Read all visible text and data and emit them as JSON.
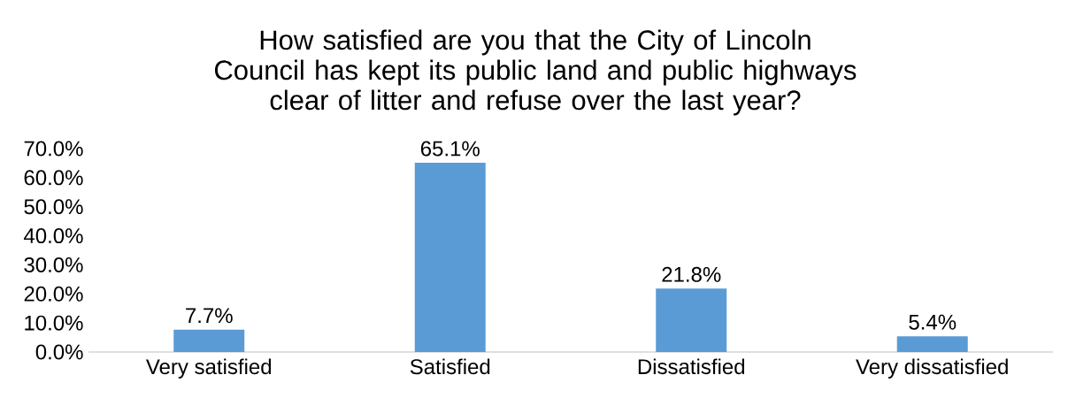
{
  "chart_data": {
    "type": "bar",
    "title": "How satisfied are you that the City of Lincoln Council has kept its public land and public highways clear of litter and refuse over the last year?",
    "categories": [
      "Very satisfied",
      "Satisfied",
      "Dissatisfied",
      "Very dissatisfied"
    ],
    "values": [
      7.7,
      65.1,
      21.8,
      5.4
    ],
    "value_labels": [
      "7.7%",
      "65.1%",
      "21.8%",
      "5.4%"
    ],
    "color": "#5b9bd5",
    "ylim": [
      0,
      70
    ],
    "yticks": [
      {
        "value": 0,
        "label": "0.0%"
      },
      {
        "value": 10,
        "label": "10.0%"
      },
      {
        "value": 20,
        "label": "20.0%"
      },
      {
        "value": 30,
        "label": "30.0%"
      },
      {
        "value": 40,
        "label": "40.0%"
      },
      {
        "value": 50,
        "label": "50.0%"
      },
      {
        "value": 60,
        "label": "60.0%"
      },
      {
        "value": 70,
        "label": "70.0%"
      }
    ],
    "grid": false
  }
}
